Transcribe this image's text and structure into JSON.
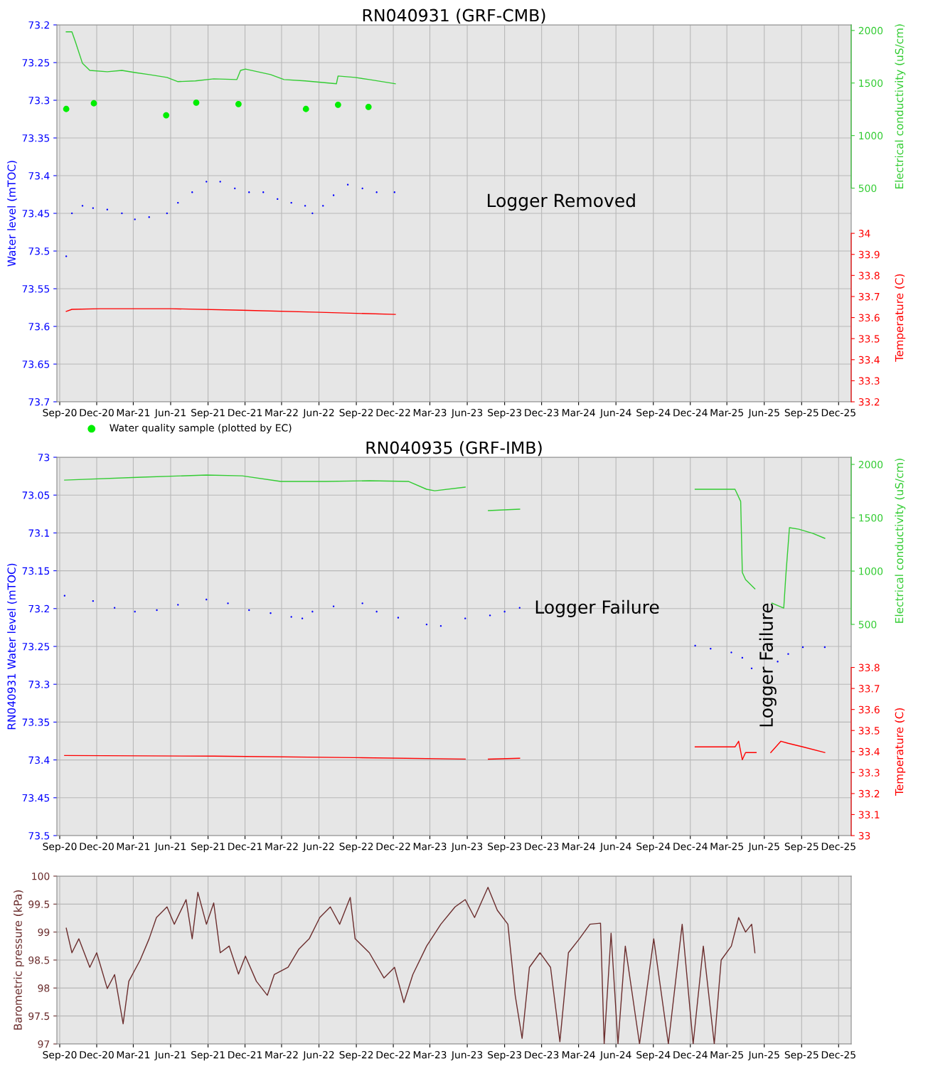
{
  "chart_data": [
    {
      "type": "line",
      "title": "RN040931 (GRF-CMB)",
      "ylabel": "Water level (mTOC)",
      "y2label": "Electrical conductivity (uS/cm)",
      "y3label": "Temperature (C)",
      "xlim": [
        "2020-08-25",
        "2026-01-01"
      ],
      "xticks": [
        {
          "value": "2020-09-01",
          "label": "Sep-20"
        },
        {
          "value": "2020-12-01",
          "label": "Dec-20"
        },
        {
          "value": "2021-03-01",
          "label": "Mar-21"
        },
        {
          "value": "2021-06-01",
          "label": "Jun-21"
        },
        {
          "value": "2021-09-01",
          "label": "Sep-21"
        },
        {
          "value": "2021-12-01",
          "label": "Dec-21"
        },
        {
          "value": "2022-03-01",
          "label": "Mar-22"
        },
        {
          "value": "2022-06-01",
          "label": "Jun-22"
        },
        {
          "value": "2022-09-01",
          "label": "Sep-22"
        },
        {
          "value": "2022-12-01",
          "label": "Dec-22"
        },
        {
          "value": "2023-03-01",
          "label": "Mar-23"
        },
        {
          "value": "2023-06-01",
          "label": "Jun-23"
        },
        {
          "value": "2023-09-01",
          "label": "Sep-23"
        },
        {
          "value": "2023-12-01",
          "label": "Dec-23"
        },
        {
          "value": "2024-03-01",
          "label": "Mar-24"
        },
        {
          "value": "2024-06-01",
          "label": "Jun-24"
        },
        {
          "value": "2024-09-01",
          "label": "Sep-24"
        },
        {
          "value": "2024-12-01",
          "label": "Dec-24"
        },
        {
          "value": "2025-03-01",
          "label": "Mar-25"
        },
        {
          "value": "2025-06-01",
          "label": "Jun-25"
        },
        {
          "value": "2025-09-01",
          "label": "Sep-25"
        },
        {
          "value": "2025-12-01",
          "label": "Dec-25"
        }
      ],
      "ylim": [
        73.7,
        73.2
      ],
      "yticks": [
        73.2,
        73.25,
        73.3,
        73.35,
        73.4,
        73.45,
        73.5,
        73.55,
        73.6,
        73.65,
        73.7
      ],
      "y2lim": [
        -1533,
        2053
      ],
      "y2ticks": [
        500,
        1000,
        1500,
        2000
      ],
      "y3lim": [
        33.2,
        34.99
      ],
      "y3ticks": [
        33.2,
        33.3,
        33.4,
        33.5,
        33.6,
        33.7,
        33.8,
        33.9,
        34
      ],
      "grid": true,
      "legend": "bottom left",
      "annotations": [
        "Logger Removed"
      ],
      "series": [
        {
          "type": "scatter",
          "marker": "circle",
          "color": "#0000ff",
          "x": [
            "2020-09-17",
            "2020-10-01",
            "2020-10-27",
            "2020-11-22",
            "2020-12-27",
            "2021-02-01",
            "2021-03-05",
            "2021-04-09",
            "2021-05-23",
            "2021-06-19",
            "2021-07-24",
            "2021-08-28",
            "2021-10-01",
            "2021-11-06",
            "2021-12-11",
            "2022-01-15",
            "2022-02-19",
            "2022-03-25",
            "2022-04-28",
            "2022-05-16",
            "2022-06-11",
            "2022-07-07",
            "2022-08-11",
            "2022-09-16",
            "2022-10-21",
            "2022-12-04"
          ],
          "values": [
            73.507,
            73.45,
            73.44,
            73.443,
            73.445,
            73.45,
            73.458,
            73.455,
            73.45,
            73.436,
            73.422,
            73.408,
            73.408,
            73.417,
            73.422,
            73.422,
            73.431,
            73.436,
            73.44,
            73.45,
            73.44,
            73.426,
            73.412,
            73.417,
            73.422,
            73.422
          ]
        },
        {
          "axis": "y2",
          "line_style": "solid",
          "color": "#33cc33",
          "x": [
            "2020-09-17",
            "2020-10-01",
            "2020-10-10",
            "2020-10-27",
            "2020-11-14",
            "2020-12-27",
            "2021-02-01",
            "2021-03-05",
            "2021-04-09",
            "2021-05-23",
            "2021-06-19",
            "2021-08-01",
            "2021-09-15",
            "2021-11-11",
            "2021-11-20",
            "2021-12-02",
            "2022-02-02",
            "2022-03-07",
            "2022-04-28",
            "2022-07-14",
            "2022-07-18",
            "2022-08-29",
            "2022-10-03",
            "2022-12-06"
          ],
          "values": [
            1987,
            1987,
            1887,
            1687,
            1620,
            1607,
            1620,
            1600,
            1580,
            1553,
            1513,
            1520,
            1540,
            1533,
            1620,
            1633,
            1580,
            1533,
            1520,
            1493,
            1567,
            1553,
            1533,
            1493
          ]
        },
        {
          "type": "scatter",
          "axis": "y2",
          "marker": "circle",
          "name": "Water quality sample (plotted by EC)",
          "color": "#00ee00",
          "x": [
            "2020-09-17",
            "2020-11-24",
            "2021-05-21",
            "2021-08-03",
            "2021-11-15",
            "2022-04-30",
            "2022-07-18",
            "2022-10-01"
          ],
          "values": [
            1253,
            1307,
            1193,
            1313,
            1300,
            1253,
            1293,
            1273
          ]
        },
        {
          "axis": "y3",
          "line_style": "solid",
          "color": "#ff0000",
          "x": [
            "2020-09-17",
            "2020-10-01",
            "2020-12-09",
            "2021-06-01",
            "2021-11-24",
            "2022-06-03",
            "2022-12-06"
          ],
          "values": [
            33.629,
            33.639,
            33.642,
            33.642,
            33.635,
            33.625,
            33.615
          ]
        }
      ]
    },
    {
      "type": "line",
      "title": "RN040935 (GRF-IMB)",
      "ylabel": "RN040931 Water level (mTOC)",
      "y2label": "Electrical conductivity (uS/cm)",
      "y3label": "Temperature (C)",
      "xlim": [
        "2020-08-25",
        "2026-01-01"
      ],
      "xticks": [
        {
          "value": "2020-09-01",
          "label": "Sep-20"
        },
        {
          "value": "2020-12-01",
          "label": "Dec-20"
        },
        {
          "value": "2021-03-01",
          "label": "Mar-21"
        },
        {
          "value": "2021-06-01",
          "label": "Jun-21"
        },
        {
          "value": "2021-09-01",
          "label": "Sep-21"
        },
        {
          "value": "2021-12-01",
          "label": "Dec-21"
        },
        {
          "value": "2022-03-01",
          "label": "Mar-22"
        },
        {
          "value": "2022-06-01",
          "label": "Jun-22"
        },
        {
          "value": "2022-09-01",
          "label": "Sep-22"
        },
        {
          "value": "2022-12-01",
          "label": "Dec-22"
        },
        {
          "value": "2023-03-01",
          "label": "Mar-23"
        },
        {
          "value": "2023-06-01",
          "label": "Jun-23"
        },
        {
          "value": "2023-09-01",
          "label": "Sep-23"
        },
        {
          "value": "2023-12-01",
          "label": "Dec-23"
        },
        {
          "value": "2024-03-01",
          "label": "Mar-24"
        },
        {
          "value": "2024-06-01",
          "label": "Jun-24"
        },
        {
          "value": "2024-09-01",
          "label": "Sep-24"
        },
        {
          "value": "2024-12-01",
          "label": "Dec-24"
        },
        {
          "value": "2025-03-01",
          "label": "Mar-25"
        },
        {
          "value": "2025-06-01",
          "label": "Jun-25"
        },
        {
          "value": "2025-09-01",
          "label": "Sep-25"
        },
        {
          "value": "2025-12-01",
          "label": "Dec-25"
        }
      ],
      "ylim": [
        73.5,
        73.0
      ],
      "yticks": [
        73,
        73.05,
        73.1,
        73.15,
        73.2,
        73.25,
        73.3,
        73.35,
        73.4,
        73.45,
        73.5
      ],
      "y2lim": [
        -1480,
        2067
      ],
      "y2ticks": [
        500,
        1000,
        1500,
        2000
      ],
      "y3lim": [
        33.0,
        34.8
      ],
      "y3ticks": [
        33,
        33.1,
        33.2,
        33.3,
        33.4,
        33.5,
        33.6,
        33.7,
        33.8
      ],
      "grid": true,
      "annotations": [
        "Logger Failure",
        "Logger Failure"
      ],
      "series": [
        {
          "type": "scatter",
          "marker": "circle",
          "color": "#0000ff",
          "x": [
            "2020-09-13",
            "2020-11-22",
            "2021-01-14",
            "2021-03-05",
            "2021-04-28",
            "2021-06-19",
            "2021-08-28",
            "2021-10-20",
            "2021-12-11",
            "2022-02-02",
            "2022-03-25",
            "2022-04-21",
            "2022-05-16",
            "2022-07-07",
            "2022-09-16",
            "2022-10-21",
            "2022-12-13",
            "2023-02-21",
            "2023-03-28",
            "2023-05-27",
            "2023-07-27",
            "2023-09-01",
            "2023-10-08",
            "2024-12-13",
            "2025-01-20",
            "2025-03-12",
            "2025-04-08",
            "2025-05-01",
            "2025-07-04",
            "2025-07-30",
            "2025-09-04",
            "2025-10-28"
          ],
          "values": [
            73.183,
            73.19,
            73.199,
            73.204,
            73.202,
            73.195,
            73.188,
            73.193,
            73.202,
            73.206,
            73.211,
            73.213,
            73.204,
            73.197,
            73.193,
            73.204,
            73.212,
            73.221,
            73.223,
            73.213,
            73.209,
            73.204,
            73.199,
            73.249,
            73.253,
            73.258,
            73.265,
            73.279,
            73.27,
            73.26,
            73.251,
            73.251
          ]
        },
        {
          "axis": "y2",
          "line_style": "solid",
          "color": "#33cc33",
          "x": [
            "2020-09-13",
            "2021-03-22",
            "2021-08-28",
            "2021-11-24",
            "2022-02-27",
            "2022-06-19",
            "2022-10-03",
            "2023-01-08",
            "2023-02-21",
            "2023-03-13",
            "2023-05-27",
            "2023-06-27",
            "2023-07-23",
            "2023-10-08",
            "2024-06-01",
            "2024-12-13",
            "2025-03-21",
            "2025-04-04",
            "2025-04-08",
            "2025-04-16",
            "2025-05-09",
            "2025-05-25",
            "2025-06-20",
            "2025-07-19",
            "2025-07-24",
            "2025-08-02",
            "2025-08-25",
            "2025-09-29",
            "2025-10-28"
          ],
          "values": [
            1853,
            1880,
            1900,
            1893,
            1840,
            1840,
            1847,
            1840,
            1767,
            1753,
            1787,
            null,
            1567,
            1580,
            null,
            1767,
            1767,
            1653,
            987,
            920,
            833,
            null,
            700,
            653,
            953,
            1407,
            1393,
            1353,
            1307
          ]
        },
        {
          "axis": "y3",
          "line_style": "solid",
          "color": "#ff0000",
          "x": [
            "2020-09-13",
            "2021-09-15",
            "2022-08-29",
            "2023-05-27",
            "2023-06-27",
            "2023-07-23",
            "2023-10-08",
            "2024-06-01",
            "2024-12-13",
            "2025-03-21",
            "2025-03-30",
            "2025-04-08",
            "2025-04-16",
            "2025-05-12",
            "2025-05-25",
            "2025-06-17",
            "2025-07-12",
            "2025-07-30",
            "2025-09-04",
            "2025-10-28"
          ],
          "values": [
            33.381,
            33.378,
            33.371,
            33.364,
            null,
            33.364,
            33.368,
            null,
            33.422,
            33.422,
            33.449,
            33.361,
            33.395,
            33.395,
            null,
            33.395,
            33.449,
            33.439,
            33.422,
            33.395
          ]
        }
      ]
    },
    {
      "type": "line",
      "ylabel": "Barometric pressure (kPa)",
      "xlim": [
        "2020-08-25",
        "2026-01-01"
      ],
      "xticks": [
        {
          "value": "2020-09-01",
          "label": "Sep-20"
        },
        {
          "value": "2020-12-01",
          "label": "Dec-20"
        },
        {
          "value": "2021-03-01",
          "label": "Mar-21"
        },
        {
          "value": "2021-06-01",
          "label": "Jun-21"
        },
        {
          "value": "2021-09-01",
          "label": "Sep-21"
        },
        {
          "value": "2021-12-01",
          "label": "Dec-21"
        },
        {
          "value": "2022-03-01",
          "label": "Mar-22"
        },
        {
          "value": "2022-06-01",
          "label": "Jun-22"
        },
        {
          "value": "2022-09-01",
          "label": "Sep-22"
        },
        {
          "value": "2022-12-01",
          "label": "Dec-22"
        },
        {
          "value": "2023-03-01",
          "label": "Mar-23"
        },
        {
          "value": "2023-06-01",
          "label": "Jun-23"
        },
        {
          "value": "2023-09-01",
          "label": "Sep-23"
        },
        {
          "value": "2023-12-01",
          "label": "Dec-23"
        },
        {
          "value": "2024-03-01",
          "label": "Mar-24"
        },
        {
          "value": "2024-06-01",
          "label": "Jun-24"
        },
        {
          "value": "2024-09-01",
          "label": "Sep-24"
        },
        {
          "value": "2024-12-01",
          "label": "Dec-24"
        },
        {
          "value": "2025-03-01",
          "label": "Mar-25"
        },
        {
          "value": "2025-06-01",
          "label": "Jun-25"
        },
        {
          "value": "2025-09-01",
          "label": "Sep-25"
        },
        {
          "value": "2025-12-01",
          "label": "Dec-25"
        }
      ],
      "ylim": [
        97,
        100
      ],
      "yticks": [
        97,
        97.5,
        98,
        98.5,
        99,
        99.5,
        100
      ],
      "grid": true,
      "series": [
        {
          "line_style": "solid",
          "color": "#6b2d2d",
          "x": [
            "2020-09-17",
            "2020-10-01",
            "2020-10-18",
            "2020-11-14",
            "2020-12-01",
            "2020-12-27",
            "2021-01-14",
            "2021-02-04",
            "2021-02-18",
            "2021-03-18",
            "2021-04-09",
            "2021-04-27",
            "2021-05-23",
            "2021-06-10",
            "2021-07-09",
            "2021-07-24",
            "2021-08-07",
            "2021-08-28",
            "2021-09-15",
            "2021-10-01",
            "2021-10-23",
            "2021-11-15",
            "2021-12-02",
            "2021-12-29",
            "2022-01-25",
            "2022-02-11",
            "2022-03-17",
            "2022-04-12",
            "2022-05-08",
            "2022-06-03",
            "2022-06-29",
            "2022-07-22",
            "2022-08-17",
            "2022-08-29",
            "2022-10-03",
            "2022-11-08",
            "2022-12-04",
            "2022-12-27",
            "2023-01-18",
            "2023-02-21",
            "2023-03-28",
            "2023-05-02",
            "2023-05-27",
            "2023-06-19",
            "2023-07-22",
            "2023-08-14",
            "2023-09-09",
            "2023-09-27",
            "2023-10-14",
            "2023-11-01",
            "2023-11-27",
            "2023-12-23",
            "2024-01-15",
            "2024-02-05",
            "2024-03-03",
            "2024-03-29",
            "2024-04-24",
            "2024-05-03",
            "2024-05-20",
            "2024-06-06",
            "2024-06-24",
            "2024-07-29",
            "2024-09-02",
            "2024-10-08",
            "2024-11-11",
            "2024-12-08",
            "2025-01-02",
            "2025-01-29",
            "2025-02-15",
            "2025-03-12",
            "2025-03-30",
            "2025-04-16",
            "2025-05-01",
            "2025-05-09"
          ],
          "values": [
            99.07,
            98.63,
            98.88,
            98.37,
            98.63,
            97.99,
            98.24,
            97.36,
            98.12,
            98.5,
            98.88,
            99.26,
            99.45,
            99.14,
            99.58,
            98.88,
            99.71,
            99.14,
            99.52,
            98.63,
            98.75,
            98.25,
            98.57,
            98.12,
            97.87,
            98.24,
            98.37,
            98.69,
            98.88,
            99.26,
            99.45,
            99.14,
            99.62,
            98.88,
            98.63,
            98.18,
            98.37,
            97.74,
            98.24,
            98.75,
            99.14,
            99.45,
            99.58,
            99.26,
            99.8,
            99.39,
            99.14,
            97.87,
            97.1,
            98.37,
            98.63,
            98.37,
            97.04,
            98.63,
            98.88,
            99.14,
            99.16,
            97,
            98.98,
            97,
            98.75,
            97,
            98.88,
            97,
            99.14,
            97,
            98.75,
            97,
            98.5,
            98.75,
            99.26,
            99.0,
            99.14,
            98.63
          ]
        }
      ]
    }
  ]
}
